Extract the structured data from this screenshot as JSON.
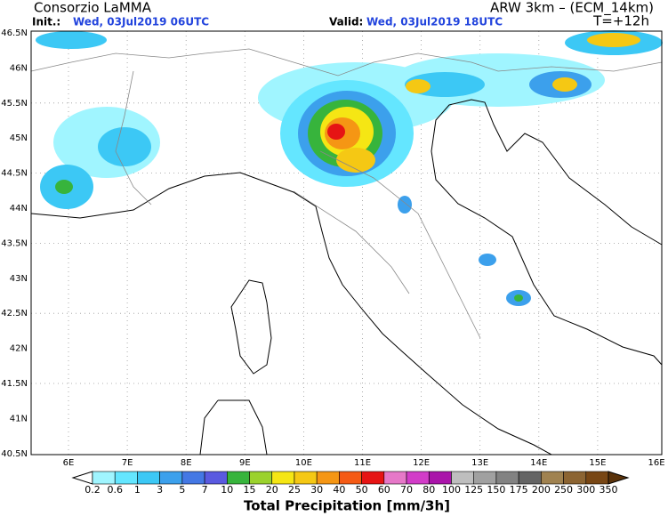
{
  "header": {
    "title_left": "Consorzio LaMMA",
    "title_right": "ARW 3km – (ECM_14km)",
    "init_label": "Init.:",
    "init_value": "Wed, 03Jul2019 06UTC",
    "valid_label": "Valid:",
    "valid_value": "Wed, 03Jul2019 18UTC",
    "lead": "T=+12h"
  },
  "map": {
    "lat_labels": [
      "46.5N",
      "46N",
      "45.5N",
      "45N",
      "44.5N",
      "44N",
      "43.5N",
      "43N",
      "42.5N",
      "42N",
      "41.5N",
      "41N",
      "40.5N"
    ],
    "lon_labels": [
      "6E",
      "7E",
      "8E",
      "9E",
      "10E",
      "11E",
      "12E",
      "13E",
      "14E",
      "15E",
      "16E"
    ]
  },
  "colorbar": {
    "title": "Total Precipitation [mm/3h]",
    "levels": [
      0.2,
      0.6,
      1,
      3,
      5,
      7,
      10,
      15,
      20,
      25,
      30,
      40,
      50,
      60,
      70,
      80,
      100,
      125,
      150,
      175,
      200,
      250,
      300,
      350
    ],
    "colors": [
      "#ffffff",
      "#a0f5ff",
      "#64e6ff",
      "#3cc8f5",
      "#3ca0ec",
      "#4478e4",
      "#5a5ae0",
      "#37b43c",
      "#9bd22d",
      "#f5e614",
      "#f5c814",
      "#f59614",
      "#f55a14",
      "#e61414",
      "#e678c8",
      "#d23cc8",
      "#aa14aa",
      "#bebebe",
      "#a0a0a0",
      "#828282",
      "#646464",
      "#a08250",
      "#8c6432",
      "#784614",
      "#5a320a"
    ]
  }
}
